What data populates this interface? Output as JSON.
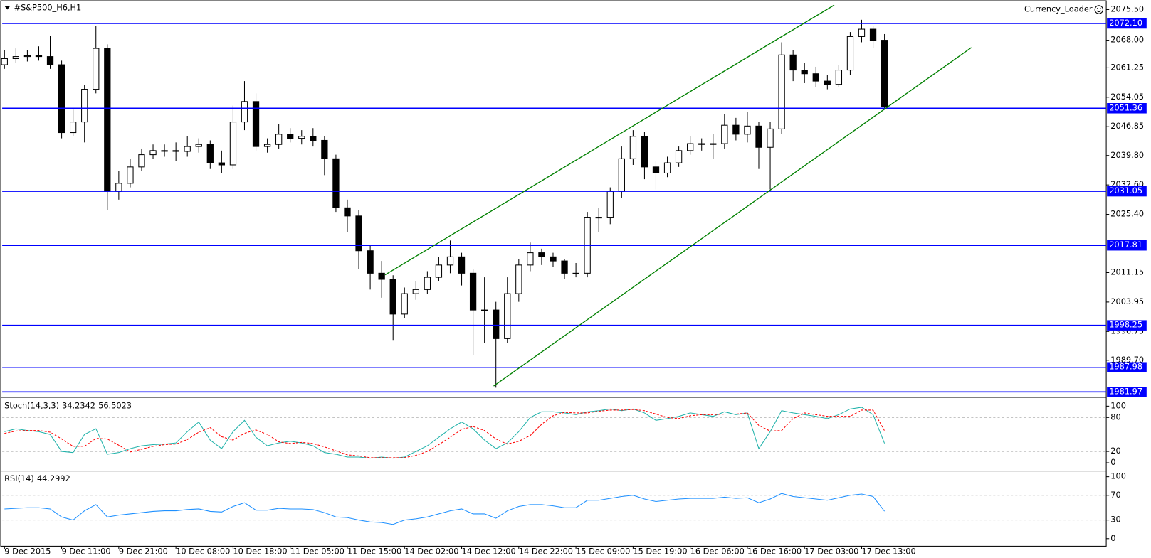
{
  "header": {
    "symbol": "#S&P500_H6,H1",
    "indicator": "Currency_Loader"
  },
  "chart_data": [
    {
      "type": "candlestick",
      "title": "#S&P500_H6,H1",
      "ohlc": [
        [
          2062.0,
          2065.5,
          2061.0,
          2063.5
        ],
        [
          2063.5,
          2066.0,
          2062.5,
          2064.0
        ],
        [
          2064.0,
          2065.5,
          2062.8,
          2064.2
        ],
        [
          2064.2,
          2066.5,
          2063.0,
          2064.0
        ],
        [
          2064.0,
          2069.0,
          2061.0,
          2062.0
        ],
        [
          2062.0,
          2063.0,
          2044.0,
          2045.4
        ],
        [
          2045.4,
          2051.0,
          2044.5,
          2048.0
        ],
        [
          2048.0,
          2057.0,
          2043.0,
          2056.0
        ],
        [
          2056.0,
          2071.5,
          2055.0,
          2066.0
        ],
        [
          2066.0,
          2067.0,
          2026.5,
          2031.0
        ],
        [
          2031.0,
          2036.0,
          2029.0,
          2033.0
        ],
        [
          2033.0,
          2039.0,
          2032.0,
          2037.0
        ],
        [
          2037.0,
          2041.5,
          2036.0,
          2040.0
        ],
        [
          2040.0,
          2042.5,
          2039.0,
          2041.0
        ],
        [
          2041.0,
          2042.5,
          2039.5,
          2041.0
        ],
        [
          2041.0,
          2043.0,
          2038.5,
          2040.8
        ],
        [
          2040.8,
          2044.5,
          2039.5,
          2042.0
        ],
        [
          2042.0,
          2044.0,
          2040.5,
          2042.5
        ],
        [
          2042.5,
          2043.5,
          2036.5,
          2038.0
        ],
        [
          2038.0,
          2041.0,
          2035.5,
          2037.5
        ],
        [
          2037.5,
          2052.0,
          2036.5,
          2048.0
        ],
        [
          2048.0,
          2058.0,
          2046.0,
          2053.0
        ],
        [
          2053.0,
          2055.0,
          2041.0,
          2042.0
        ],
        [
          2042.0,
          2044.0,
          2040.5,
          2042.5
        ],
        [
          2042.5,
          2047.5,
          2041.5,
          2045.0
        ],
        [
          2045.0,
          2046.5,
          2043.0,
          2044.0
        ],
        [
          2044.0,
          2046.0,
          2042.5,
          2044.5
        ],
        [
          2044.5,
          2046.5,
          2042.0,
          2043.5
        ],
        [
          2043.5,
          2044.5,
          2035.0,
          2039.0
        ],
        [
          2039.0,
          2040.0,
          2026.0,
          2027.0
        ],
        [
          2027.0,
          2029.0,
          2021.0,
          2025.0
        ],
        [
          2025.0,
          2026.5,
          2012.0,
          2016.5
        ],
        [
          2016.5,
          2018.0,
          2007.0,
          2011.0
        ],
        [
          2011.0,
          2014.0,
          2005.0,
          2009.5
        ],
        [
          2009.5,
          2010.5,
          1994.5,
          2001.0
        ],
        [
          2001.0,
          2007.5,
          2000.0,
          2006.0
        ],
        [
          2006.0,
          2009.0,
          2004.5,
          2007.0
        ],
        [
          2007.0,
          2011.5,
          2006.0,
          2010.0
        ],
        [
          2010.0,
          2015.0,
          2009.0,
          2013.0
        ],
        [
          2013.0,
          2019.0,
          2011.0,
          2015.0
        ],
        [
          2015.0,
          2016.0,
          2008.0,
          2011.0
        ],
        [
          2011.0,
          2012.0,
          1991.0,
          2002.0
        ],
        [
          2002.0,
          2010.0,
          1994.0,
          2002.0
        ],
        [
          2002.0,
          2004.0,
          1983.0,
          1995.0
        ],
        [
          1995.0,
          2010.0,
          1994.0,
          2006.0
        ],
        [
          2006.0,
          2014.5,
          2004.0,
          2013.0
        ],
        [
          2013.0,
          2018.5,
          2011.5,
          2016.0
        ],
        [
          2016.0,
          2017.0,
          2013.0,
          2015.0
        ],
        [
          2015.0,
          2016.0,
          2012.5,
          2014.0
        ],
        [
          2014.0,
          2014.5,
          2009.5,
          2011.0
        ],
        [
          2011.0,
          2013.5,
          2010.0,
          2011.0
        ],
        [
          2011.0,
          2026.0,
          2010.0,
          2024.7
        ],
        [
          2024.7,
          2027.0,
          2021.0,
          2024.7
        ],
        [
          2024.7,
          2032.0,
          2023.0,
          2031.0
        ],
        [
          2031.0,
          2042.0,
          2029.5,
          2039.0
        ],
        [
          2039.0,
          2046.0,
          2037.5,
          2044.5
        ],
        [
          2044.5,
          2045.5,
          2034.0,
          2037.0
        ],
        [
          2037.0,
          2038.5,
          2031.5,
          2035.5
        ],
        [
          2035.5,
          2039.5,
          2034.5,
          2038.0
        ],
        [
          2038.0,
          2042.0,
          2037.0,
          2041.0
        ],
        [
          2041.0,
          2044.5,
          2040.0,
          2042.7
        ],
        [
          2042.7,
          2044.0,
          2041.0,
          2042.5
        ],
        [
          2042.5,
          2045.0,
          2039.0,
          2042.7
        ],
        [
          2042.7,
          2050.0,
          2041.5,
          2047.2
        ],
        [
          2047.2,
          2049.0,
          2043.5,
          2045.0
        ],
        [
          2045.0,
          2050.5,
          2043.0,
          2047.0
        ],
        [
          2047.0,
          2048.0,
          2036.5,
          2041.8
        ],
        [
          2041.8,
          2048.0,
          2031.5,
          2046.3
        ],
        [
          2046.3,
          2067.5,
          2045.0,
          2064.4
        ],
        [
          2064.4,
          2065.5,
          2058.0,
          2060.7
        ],
        [
          2060.7,
          2062.5,
          2057.5,
          2059.8
        ],
        [
          2059.8,
          2061.5,
          2056.5,
          2058.0
        ],
        [
          2058.0,
          2059.5,
          2056.0,
          2057.2
        ],
        [
          2057.2,
          2062.0,
          2056.5,
          2060.7
        ],
        [
          2060.7,
          2070.0,
          2059.5,
          2068.9
        ],
        [
          2068.9,
          2073.0,
          2067.5,
          2070.7
        ],
        [
          2070.7,
          2071.5,
          2066.0,
          2068.0
        ],
        [
          2068.0,
          2069.5,
          2051.0,
          2051.7
        ]
      ],
      "xlim": [
        -0.2,
        96.4
      ],
      "xticks": [
        {
          "value": 0,
          "label": "9 Dec 2015"
        },
        {
          "value": 5,
          "label": "9 Dec 11:00"
        },
        {
          "value": 10,
          "label": "9 Dec 21:00"
        },
        {
          "value": 15,
          "label": "10 Dec 08:00"
        },
        {
          "value": 20,
          "label": "10 Dec 18:00"
        },
        {
          "value": 25,
          "label": "11 Dec 05:00"
        },
        {
          "value": 30,
          "label": "11 Dec 15:00"
        },
        {
          "value": 35,
          "label": "14 Dec 02:00"
        },
        {
          "value": 40,
          "label": "14 Dec 12:00"
        },
        {
          "value": 45,
          "label": "14 Dec 22:00"
        },
        {
          "value": 50,
          "label": "15 Dec 09:00"
        },
        {
          "value": 55,
          "label": "15 Dec 19:00"
        },
        {
          "value": 60,
          "label": "16 Dec 06:00"
        },
        {
          "value": 65,
          "label": "16 Dec 16:00"
        },
        {
          "value": 70,
          "label": "17 Dec 03:00"
        },
        {
          "value": 75,
          "label": "17 Dec 13:00"
        }
      ],
      "ylim": [
        1981.0,
        2077.3
      ],
      "yticks": [
        {
          "value": 2075.5,
          "label": "2075.50"
        },
        {
          "value": 2068.0,
          "label": "2068.00"
        },
        {
          "value": 2061.25,
          "label": "2061.25"
        },
        {
          "value": 2054.05,
          "label": "2054.05"
        },
        {
          "value": 2046.85,
          "label": "2046.85"
        },
        {
          "value": 2039.8,
          "label": "2039.80"
        },
        {
          "value": 2032.6,
          "label": "2032.60"
        },
        {
          "value": 2025.4,
          "label": "2025.40"
        },
        {
          "value": 2011.15,
          "label": "2011.15"
        },
        {
          "value": 2003.95,
          "label": "2003.95"
        },
        {
          "value": 1996.75,
          "label": "1996.75"
        },
        {
          "value": 1989.7,
          "label": "1989.70"
        }
      ],
      "levels": [
        {
          "value": 2072.1,
          "label": "2072.10"
        },
        {
          "value": 2051.36,
          "label": "2051.36"
        },
        {
          "value": 2031.05,
          "label": "2031.05"
        },
        {
          "value": 2017.81,
          "label": "2017.81"
        },
        {
          "value": 1998.25,
          "label": "1998.25"
        },
        {
          "value": 1987.98,
          "label": "1987.98"
        },
        {
          "value": 1981.97,
          "label": "1981.97"
        }
      ],
      "level_color": "#0000ff",
      "trendlines": [
        {
          "x": [
            33.3,
            72.6
          ],
          "y": [
            2010.6,
            2076.6
          ]
        },
        {
          "x": [
            42.8,
            84.6
          ],
          "y": [
            1983.4,
            2066.2
          ]
        }
      ],
      "trendline_color": "#008000",
      "up_color": "#ffffff",
      "down_color": "#000000"
    },
    {
      "type": "line",
      "title": "Stoch(14,3,3)",
      "series": [
        {
          "color": "#20b2aa",
          "line_style": "solid",
          "values": [
            55,
            60,
            57,
            55,
            50,
            20,
            18,
            50,
            60,
            15,
            18,
            25,
            30,
            32,
            33,
            35,
            55,
            72,
            40,
            25,
            55,
            75,
            45,
            30,
            35,
            38,
            35,
            30,
            18,
            15,
            10,
            10,
            8,
            10,
            8,
            10,
            20,
            30,
            45,
            60,
            72,
            60,
            40,
            25,
            35,
            55,
            80,
            90,
            90,
            88,
            85,
            90,
            92,
            95,
            92,
            95,
            88,
            75,
            78,
            82,
            88,
            85,
            82,
            90,
            85,
            88,
            25,
            55,
            92,
            88,
            85,
            82,
            78,
            85,
            95,
            98,
            85,
            34.2342
          ]
        },
        {
          "color": "#ff0000",
          "line_style": "dashed",
          "values": [
            52,
            56,
            57,
            57,
            54,
            42,
            29,
            29,
            43,
            42,
            31,
            19,
            24,
            29,
            32,
            33,
            41,
            54,
            62,
            46,
            40,
            52,
            58,
            50,
            37,
            34,
            36,
            34,
            28,
            21,
            14,
            12,
            9,
            9,
            9,
            9,
            13,
            20,
            32,
            45,
            59,
            64,
            57,
            42,
            33,
            38,
            48,
            68,
            83,
            89,
            88,
            88,
            91,
            93,
            93,
            94,
            92,
            86,
            80,
            78,
            83,
            85,
            85,
            86,
            86,
            88,
            66,
            56,
            57,
            78,
            88,
            85,
            82,
            82,
            82,
            93,
            93,
            56.5023
          ]
        }
      ],
      "ylim": [
        -12,
        113
      ],
      "yticks": [
        100,
        80,
        20,
        0
      ],
      "dashed_levels": [
        80,
        20
      ]
    },
    {
      "type": "line",
      "title": "RSI(14)",
      "series": [
        {
          "color": "#1e90ff",
          "line_style": "solid",
          "values": [
            48,
            49,
            50,
            50,
            48,
            35,
            30,
            45,
            55,
            35,
            38,
            40,
            42,
            44,
            45,
            45,
            47,
            48,
            44,
            43,
            52,
            58,
            46,
            46,
            49,
            48,
            48,
            47,
            42,
            35,
            34,
            30,
            27,
            26,
            23,
            30,
            32,
            35,
            40,
            45,
            48,
            40,
            40,
            33,
            45,
            52,
            55,
            55,
            53,
            50,
            50,
            62,
            62,
            65,
            68,
            70,
            64,
            60,
            62,
            64,
            65,
            65,
            65,
            67,
            65,
            66,
            58,
            64,
            73,
            68,
            66,
            64,
            62,
            66,
            70,
            72,
            68,
            44.2992
          ]
        }
      ],
      "ylim": [
        -11,
        108
      ],
      "yticks": [
        100,
        70,
        30,
        0
      ],
      "dashed_levels": [
        70,
        30
      ]
    }
  ]
}
